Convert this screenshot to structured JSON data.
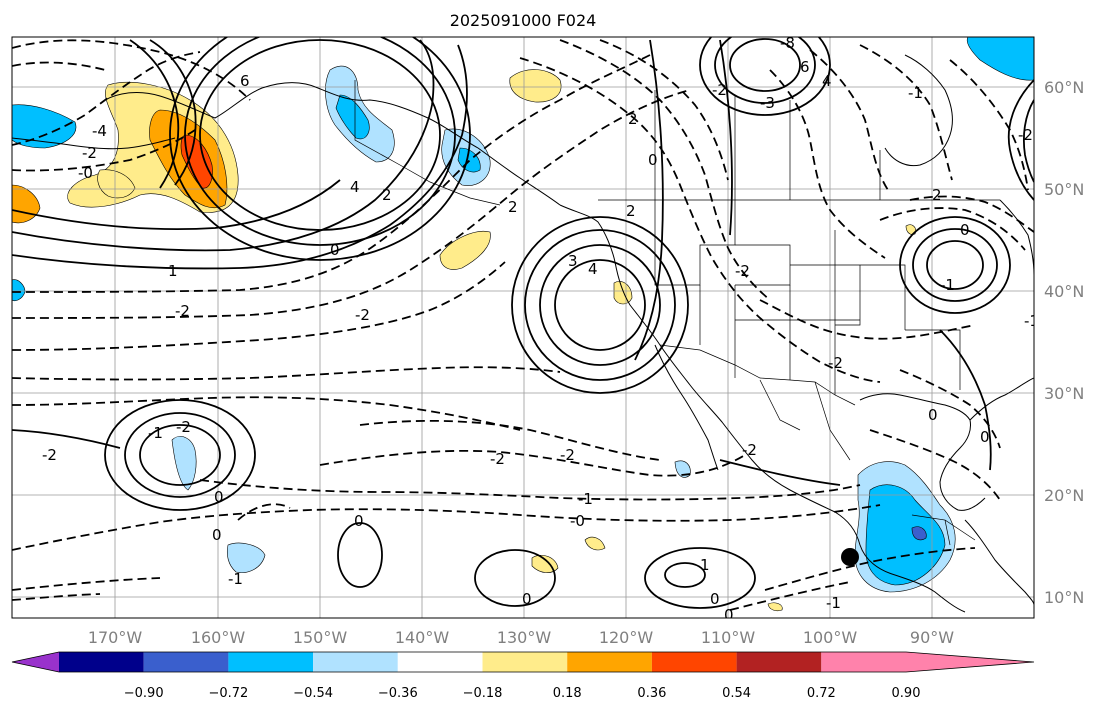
{
  "title": "2025091000 F024",
  "longitude_labels": [
    "170°W",
    "160°W",
    "150°W",
    "140°W",
    "130°W",
    "120°W",
    "110°W",
    "100°W",
    "90°W"
  ],
  "latitude_labels": [
    "60°N",
    "50°N",
    "40°N",
    "30°N",
    "20°N",
    "10°N"
  ],
  "colorbar": {
    "tick_labels": [
      "−0.90",
      "−0.72",
      "−0.54",
      "−0.36",
      "−0.18",
      "0.18",
      "0.36",
      "0.54",
      "0.72",
      "0.90"
    ],
    "colors": [
      "#9932cc",
      "#00008b",
      "#3a5fcd",
      "#00bfff",
      "#b0e2ff",
      "#ffffff",
      "#ffec8b",
      "#ffa500",
      "#ff4500",
      "#b22222",
      "#ff82ab"
    ]
  },
  "contour_labels": {
    "c1": "-4",
    "c2": "-2",
    "c3": "-0",
    "c4": "6",
    "c5": "4",
    "c6": "2",
    "c7": "0",
    "c8": "1",
    "c9": "-2",
    "c10": "-2",
    "c11": "-2",
    "c12": "-1",
    "c13": "-0",
    "c14": "0",
    "c15": "-1",
    "c16": "0",
    "c17": "-2",
    "c18": "2",
    "c19": "3",
    "c20": "4",
    "c21": "2",
    "c22": "-2",
    "c23": "-2",
    "c24": "0",
    "c25": "2",
    "c26": "0",
    "c27": "-1",
    "c28": "-1",
    "c29": "2",
    "c30": "-2",
    "c31": "0",
    "c32": "-1",
    "c33": "-2",
    "c34": "0",
    "c35": "-8",
    "c36": "6",
    "c37": "4",
    "c38": "-3",
    "c39": "-1",
    "c40": "-2",
    "c41": "-2",
    "c42": "0",
    "c43": "1",
    "c44": "0",
    "c45": "0",
    "c46": "-2",
    "c47": "-1",
    "c48": "0"
  }
}
